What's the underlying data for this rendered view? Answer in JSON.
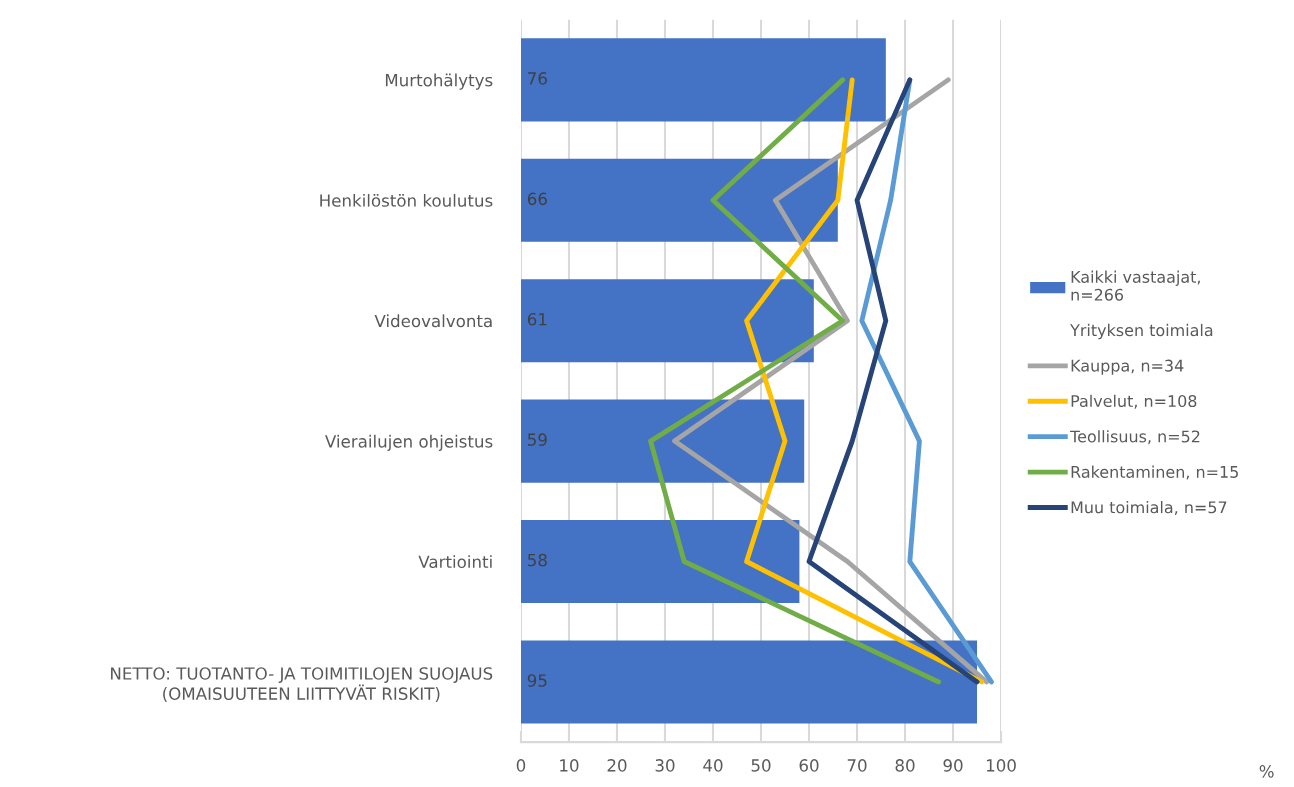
{
  "chart_data": {
    "type": "bar",
    "orientation": "horizontal",
    "annotations": [
      "%"
    ],
    "categories": [
      "Murtohälytys",
      "Henkilöstön koulutus",
      "Videovalvonta",
      "Vierailujen ohjeistus",
      "Vartiointi",
      "NETTO: TUOTANTO- JA TOIMITILOJEN SUOJAUS\n(OMAISUUTEEN LIITTYVÄT RISKIT)"
    ],
    "xlim": [
      0,
      100
    ],
    "xticks": [
      0,
      10,
      20,
      30,
      40,
      50,
      60,
      70,
      80,
      90,
      100
    ],
    "grid": "x",
    "legend": "right",
    "series": [
      {
        "name": "Kaikki vastaajat,\nn=266",
        "color": "#4472c4",
        "values": [
          76,
          66,
          61,
          59,
          58,
          95
        ],
        "data_labels": true
      },
      {
        "name": "Yrityksen toimiala",
        "type": "line",
        "color": null,
        "values": [
          null,
          null,
          null,
          null,
          null,
          null
        ]
      },
      {
        "name": "Kauppa, n=34",
        "type": "line",
        "color": "#a5a5a5",
        "values": [
          89,
          53,
          68,
          32,
          68,
          97
        ]
      },
      {
        "name": "Palvelut, n=108",
        "type": "line",
        "color": "#ffc000",
        "values": [
          69,
          66,
          47,
          55,
          47,
          96
        ]
      },
      {
        "name": "Teollisuus, n=52",
        "type": "line",
        "color": "#5b9bd5",
        "values": [
          81,
          77,
          71,
          83,
          81,
          98
        ]
      },
      {
        "name": "Rakentaminen, n=15",
        "type": "line",
        "color": "#70ad47",
        "values": [
          67,
          40,
          67,
          27,
          34,
          87
        ]
      },
      {
        "name": "Muu toimiala, n=57",
        "type": "line",
        "color": "#264478",
        "values": [
          81,
          70,
          76,
          69,
          60,
          95
        ]
      }
    ]
  }
}
